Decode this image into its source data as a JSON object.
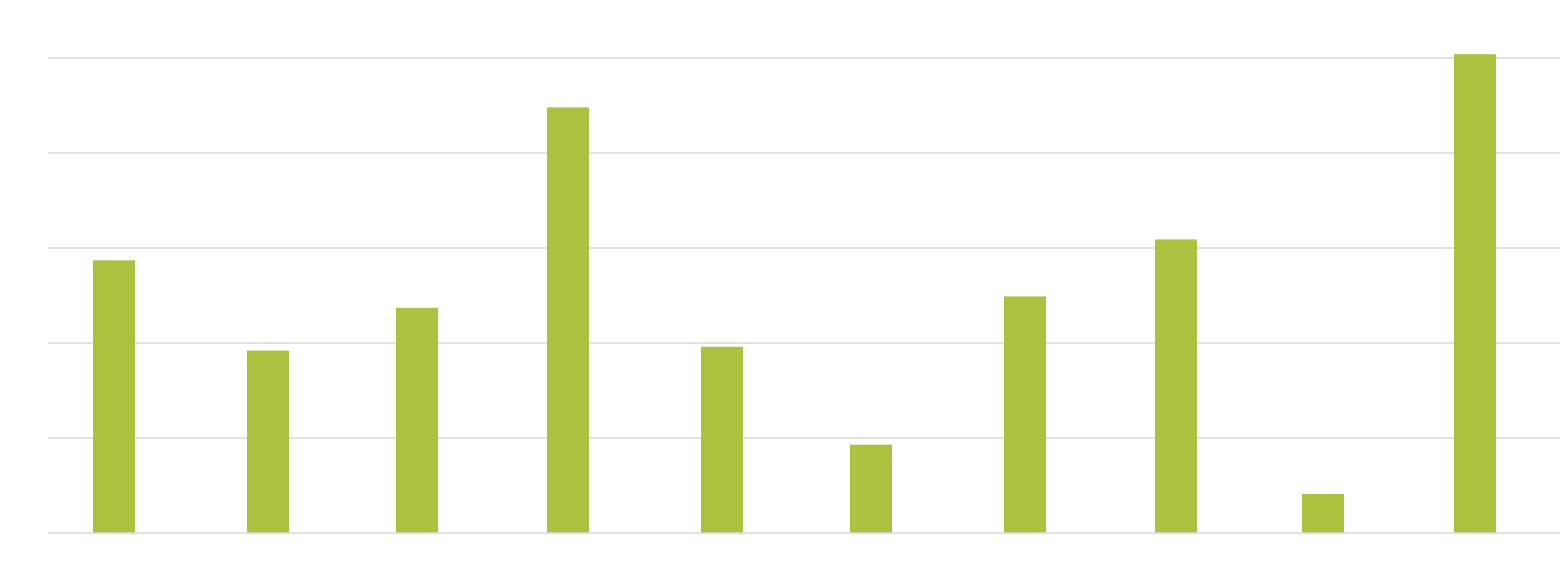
{
  "chart_data": {
    "type": "bar",
    "categories": [
      "",
      "",
      "",
      "",
      "",
      "",
      "",
      "",
      "",
      ""
    ],
    "values": [
      2.87,
      1.92,
      2.37,
      4.48,
      1.96,
      0.93,
      2.49,
      3.09,
      0.41,
      5.04
    ],
    "title": "",
    "xlabel": "",
    "ylabel": "",
    "ylim": [
      0,
      5
    ],
    "grid": true,
    "legend": "none",
    "colors": {
      "bar": "#abc13f",
      "grid": "#d9d9d9",
      "axis": "#d9d9d9"
    }
  }
}
